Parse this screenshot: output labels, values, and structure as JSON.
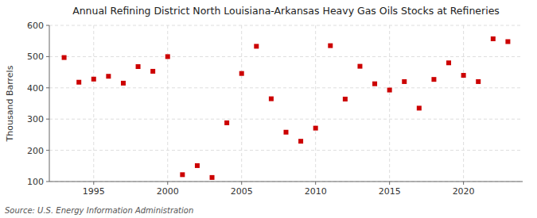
{
  "chart_data": {
    "type": "scatter",
    "title": "Annual Refining District North Louisiana-Arkansas Heavy Gas Oils Stocks at Refineries",
    "ylabel": "Thousand Barrels",
    "source": "Source: U.S. Energy Information Administration",
    "x": [
      1993,
      1994,
      1995,
      1996,
      1997,
      1998,
      1999,
      2000,
      2001,
      2002,
      2003,
      2004,
      2005,
      2006,
      2007,
      2008,
      2009,
      2010,
      2011,
      2012,
      2013,
      2014,
      2015,
      2016,
      2017,
      2018,
      2019,
      2020,
      2021,
      2022,
      2023
    ],
    "values": [
      497,
      418,
      428,
      437,
      415,
      468,
      453,
      500,
      122,
      151,
      113,
      288,
      446,
      533,
      365,
      258,
      229,
      271,
      535,
      364,
      469,
      413,
      393,
      420,
      335,
      427,
      480,
      440,
      420,
      557,
      548
    ],
    "color": "#cc0000",
    "marker": "square",
    "xlim": [
      1992,
      2024
    ],
    "ylim": [
      100,
      600
    ],
    "xticks": [
      1995,
      2000,
      2005,
      2010,
      2015,
      2020
    ],
    "yticks": [
      100,
      200,
      300,
      400,
      500,
      600
    ],
    "grid": true
  }
}
